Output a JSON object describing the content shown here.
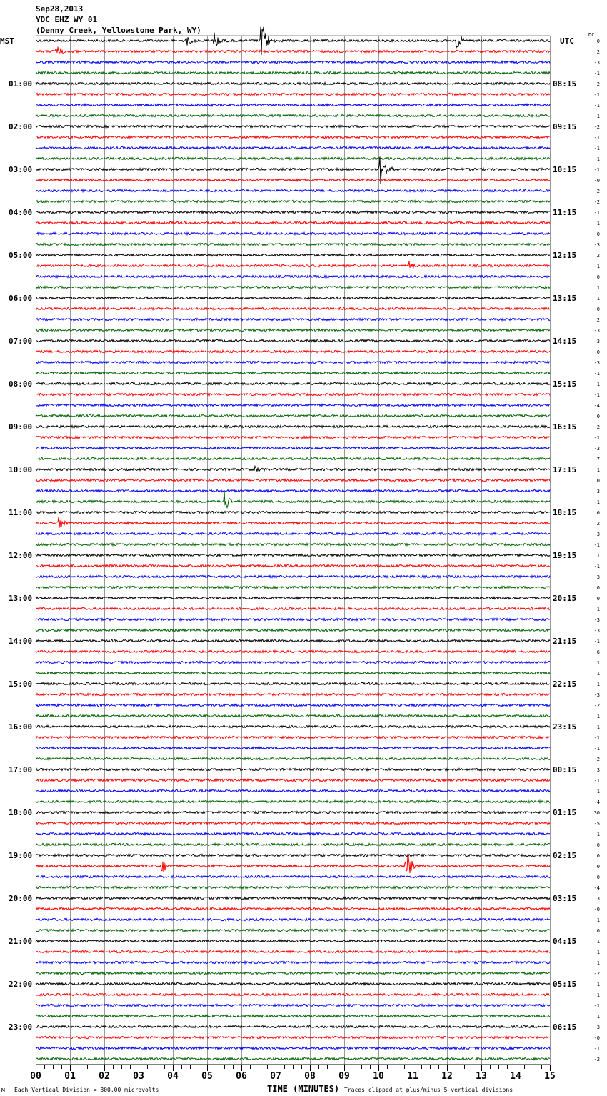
{
  "header": {
    "date": "Sep28,2013",
    "station": "YDC EHZ WY 01",
    "location": "(Denny Creek, Yellowstone Park, WY)"
  },
  "chart_data": {
    "type": "line",
    "subtype": "helicorder",
    "left_timezone": "MST",
    "right_timezone": "UTC",
    "dc_header": "DC",
    "xlabel": "TIME (MINUTES)",
    "xlim": [
      0,
      15
    ],
    "x_ticks": [
      "00",
      "01",
      "02",
      "03",
      "04",
      "05",
      "06",
      "07",
      "08",
      "09",
      "10",
      "11",
      "12",
      "13",
      "14",
      "15"
    ],
    "left_hour_labels": [
      "MST",
      "01:00",
      "02:00",
      "03:00",
      "04:00",
      "05:00",
      "06:00",
      "07:00",
      "08:00",
      "09:00",
      "10:00",
      "11:00",
      "12:00",
      "13:00",
      "14:00",
      "15:00",
      "16:00",
      "17:00",
      "18:00",
      "19:00",
      "20:00",
      "21:00",
      "22:00",
      "23:00"
    ],
    "right_hour_labels": [
      "UTC",
      "08:15",
      "09:15",
      "10:15",
      "11:15",
      "12:15",
      "13:15",
      "14:15",
      "15:15",
      "16:15",
      "17:15",
      "18:15",
      "19:15",
      "20:15",
      "21:15",
      "22:15",
      "23:15",
      "00:15",
      "01:15",
      "02:15",
      "03:15",
      "04:15",
      "05:15",
      "06:15"
    ],
    "dc_offsets": [
      "0",
      "2",
      "-3",
      "-1",
      "2",
      "-1",
      "-1",
      "-1",
      "-2",
      "-1",
      "-1",
      "-1",
      "-1",
      "-0",
      "2",
      "-2",
      "-1",
      "1",
      "-0",
      "-3",
      "2",
      "-1",
      "0",
      "1",
      "1",
      "-0",
      "2",
      "-3",
      "3",
      "-0",
      "-3",
      "-1",
      "1",
      "-1",
      "-4",
      "0",
      "-2",
      "-1",
      "-3",
      "7",
      "1",
      "0",
      "3",
      "-1",
      "6",
      "2",
      "-3",
      "-1",
      "1",
      "-1",
      "-3",
      "0",
      "0",
      "1",
      "-3",
      "-3",
      "-1",
      "6",
      "1",
      "1",
      "1",
      "-3",
      "-2",
      "1",
      "-1",
      "-1",
      "-1",
      "-2",
      "3",
      "-1",
      "1",
      "-4",
      "30",
      "-5",
      "1",
      "-0",
      "0",
      "0",
      "0",
      "-4",
      "3",
      "-0",
      "-1",
      "0",
      "1",
      "-1",
      "1",
      "-2",
      "1",
      "-1",
      "-1",
      "1",
      "-3",
      "-0",
      "-1",
      "-2"
    ],
    "trace_colors": [
      "#000000",
      "#ff0000",
      "#0000ff",
      "#006400"
    ],
    "traces_per_hour": 4,
    "grid": true,
    "events": [
      {
        "trace": 0,
        "minute": 4.4,
        "amplitude_div": 1.5
      },
      {
        "trace": 0,
        "minute": 5.2,
        "amplitude_div": 2.5
      },
      {
        "trace": 0,
        "minute": 6.6,
        "amplitude_div": 5
      },
      {
        "trace": 0,
        "minute": 12.3,
        "amplitude_div": 2
      },
      {
        "trace": 1,
        "minute": 0.6,
        "amplitude_div": 1.5
      },
      {
        "trace": 12,
        "minute": 10.05,
        "amplitude_div": 5
      },
      {
        "trace": 21,
        "minute": 10.9,
        "amplitude_div": 1.2
      },
      {
        "trace": 40,
        "minute": 6.4,
        "amplitude_div": 1.2
      },
      {
        "trace": 43,
        "minute": 5.5,
        "amplitude_div": 3
      },
      {
        "trace": 45,
        "minute": 0.7,
        "amplitude_div": 1.5
      },
      {
        "trace": 77,
        "minute": 3.7,
        "amplitude_div": 2
      },
      {
        "trace": 77,
        "minute": 10.8,
        "amplitude_div": 5
      }
    ],
    "footer_left": "Each Vertical Division =  800.00 microvolts",
    "footer_right": "Traces clipped at plus/minus 5 vertical divisions"
  }
}
